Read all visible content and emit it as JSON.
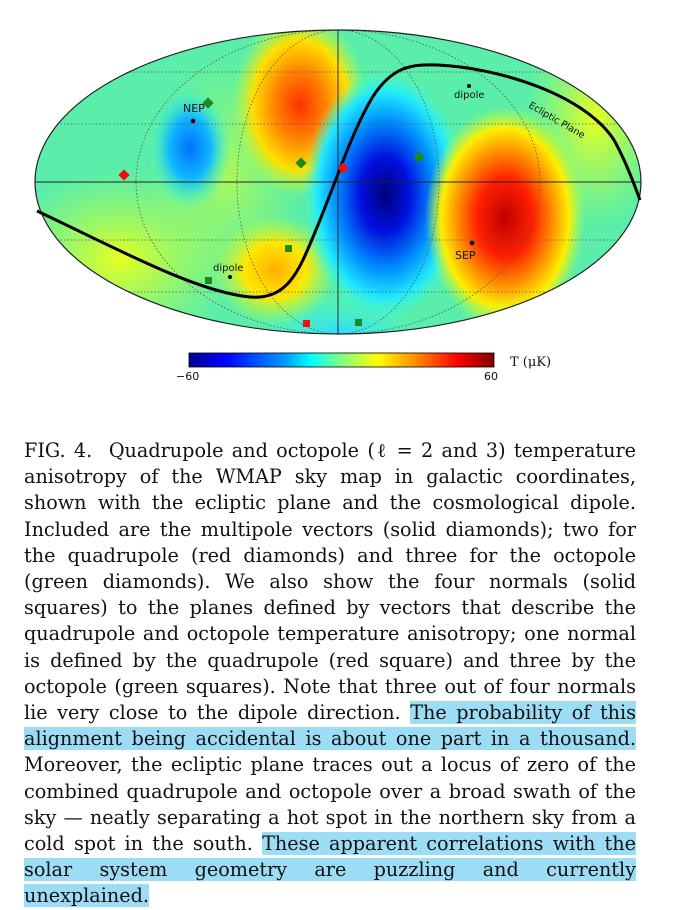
{
  "figure": {
    "labels": {
      "nep": "NEP",
      "sep": "SEP",
      "dipole_north": "dipole",
      "dipole_south": "dipole",
      "ecliptic_plane": "Ecliptic Plane"
    },
    "colorbar": {
      "min_label": "−60",
      "max_label": "60",
      "unit_label": "T (μK)",
      "stops": [
        "#00008f",
        "#0000ff",
        "#00a0ff",
        "#00ffff",
        "#80ff80",
        "#ffff00",
        "#ff9000",
        "#ff0000",
        "#800000"
      ]
    },
    "colors": {
      "background_field": "#55ee9e",
      "red_marker": "#ee1010",
      "green_marker": "#1e8a1e"
    }
  },
  "caption": {
    "label": "FIG. 4.",
    "text_before_highlight": "Quadrupole and octopole (ℓ = 2 and 3) temperature anisotropy of the WMAP sky map in galactic coordinates, shown with the ecliptic plane and the cosmological dipole. Included are the multipole vectors (solid diamonds); two for the quadrupole (red diamonds) and three for the octopole (green diamonds). We also show the four normals (solid squares) to the planes defined by vectors that describe the quadrupole and octopole temperature anisotropy; one normal is defined by the quadrupole (red square) and three by the octopole (green squares). Note that three out of four normals lie very close to the dipole direction.",
    "highlight_1": "The probability of this alignment being accidental is about one part in a thousand.",
    "text_middle": "Moreover, the ecliptic plane traces out a locus of zero of the combined quadrupole and octopole over a broad swath of the sky — neatly separating a hot spot in the northern sky from a cold spot in the south.",
    "highlight_2": "These apparent correlations with the solar system geometry are puzzling and currently unexplained."
  }
}
